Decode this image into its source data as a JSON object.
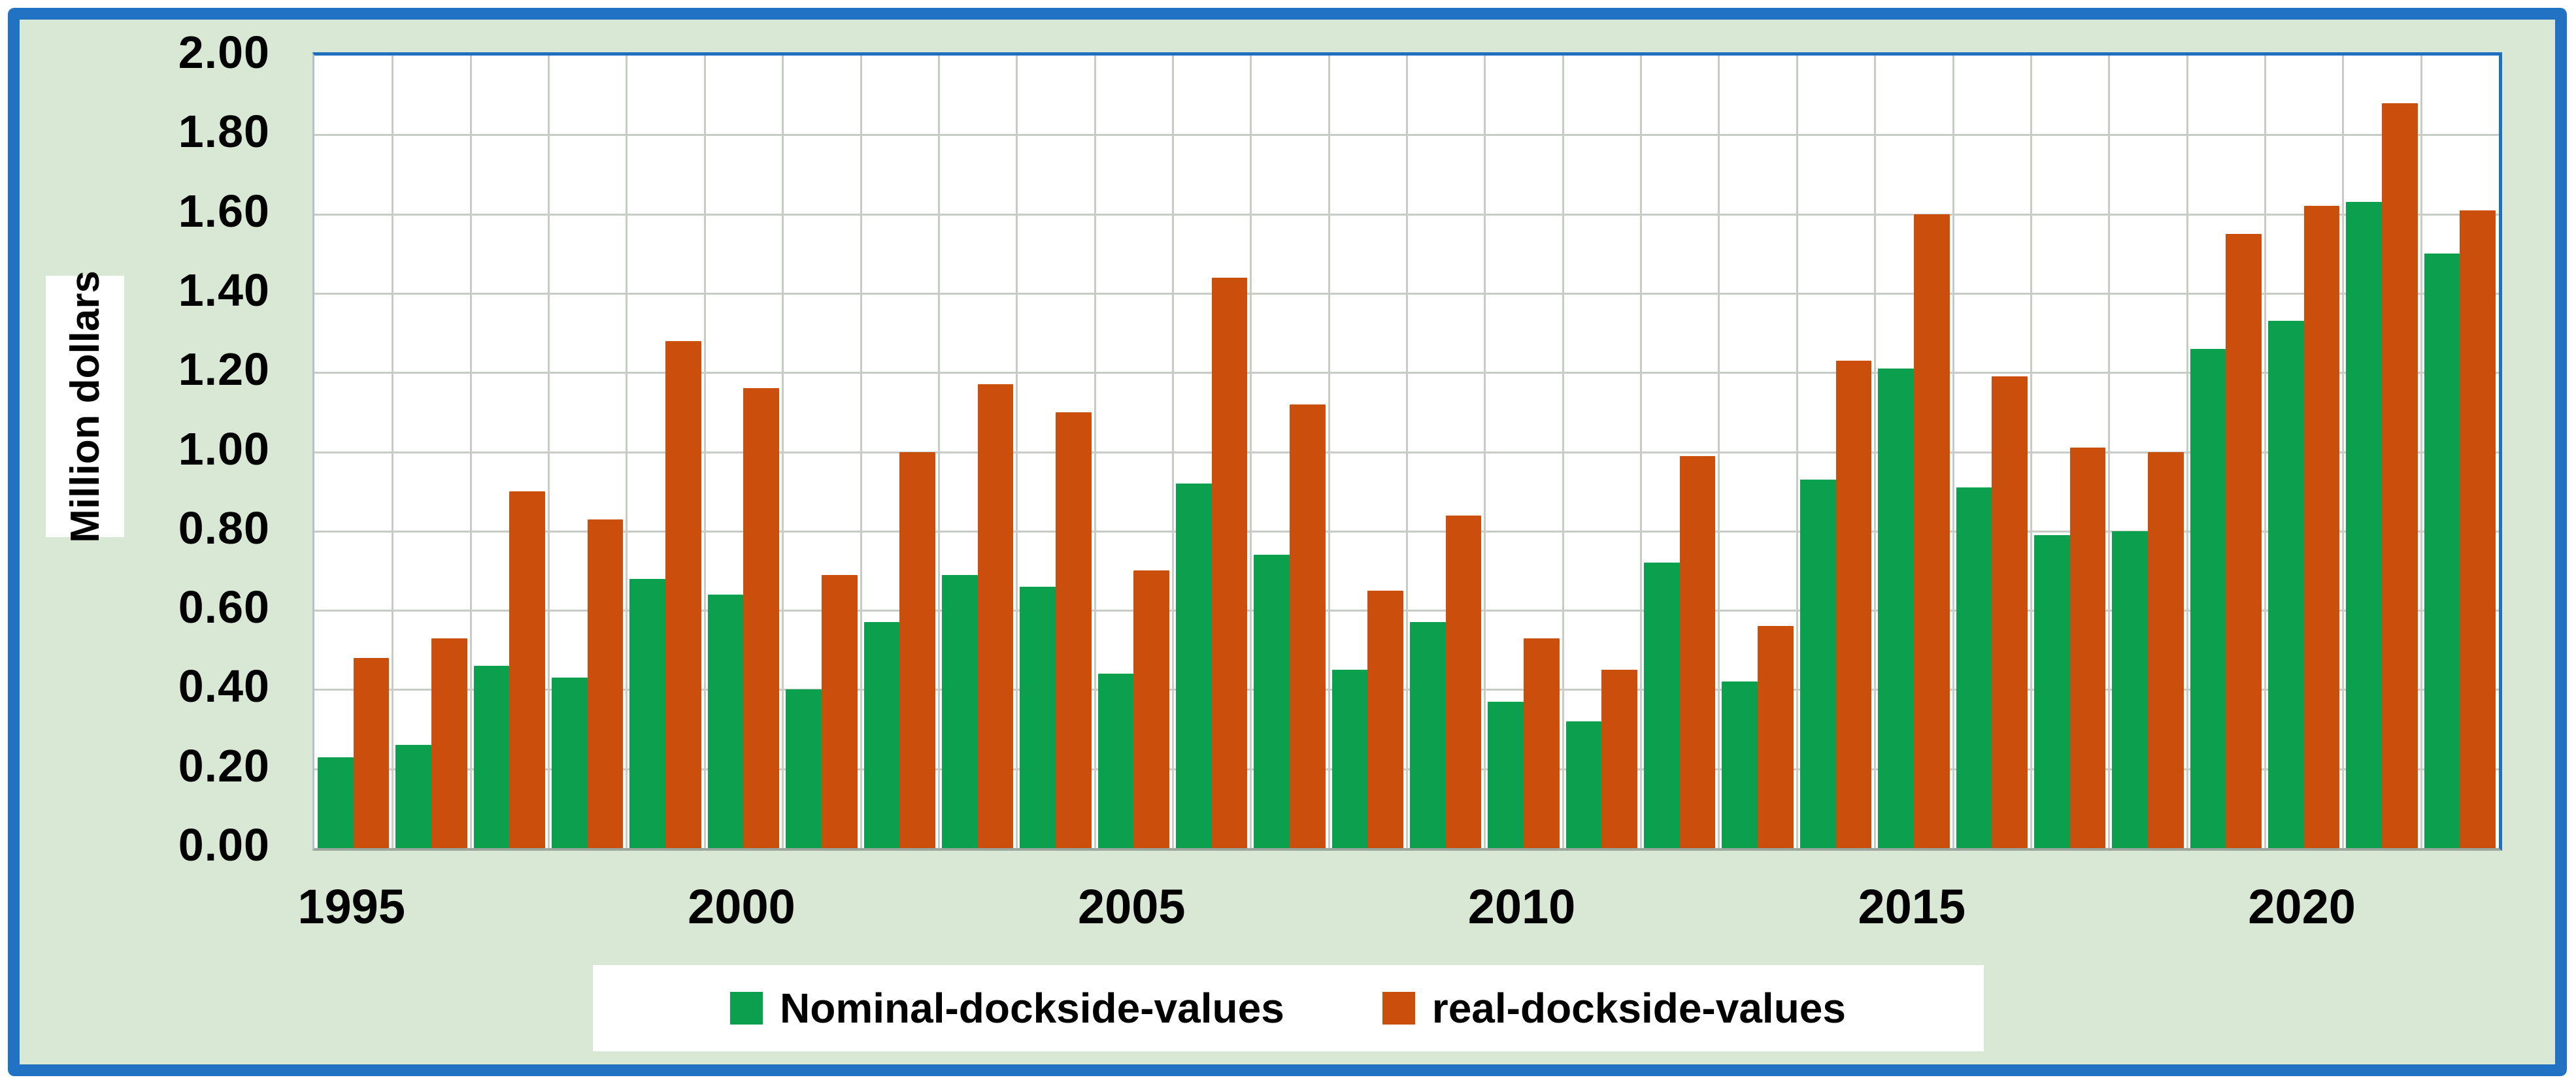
{
  "colors": {
    "frame_blue": "#2272c3",
    "plot_border_blue": "#1e6fc0",
    "background_green": "#d9e8d4",
    "gridline_gray": "#c7ccc7",
    "series_green": "#0aa04d",
    "series_orange": "#ca4f0d"
  },
  "chart_data": {
    "type": "bar",
    "title": "",
    "xlabel": "",
    "ylabel": "Million dollars",
    "ylim": [
      0,
      2.0
    ],
    "ytick_step": 0.2,
    "ytick_decimals": 2,
    "grid": "both",
    "legend_position": "bottom",
    "categories": [
      1995,
      1996,
      1997,
      1998,
      1999,
      2000,
      2001,
      2002,
      2003,
      2004,
      2005,
      2006,
      2007,
      2008,
      2009,
      2010,
      2011,
      2012,
      2013,
      2014,
      2015,
      2016,
      2017,
      2018,
      2019,
      2020,
      2021,
      2022
    ],
    "x_tick_labels": [
      "1995",
      "2000",
      "2005",
      "2010",
      "2015",
      "2020"
    ],
    "series": [
      {
        "name": "Nominal-dockside-values",
        "color": "#0aa04d",
        "values": [
          0.23,
          0.26,
          0.46,
          0.43,
          0.68,
          0.64,
          0.4,
          0.57,
          0.69,
          0.66,
          0.44,
          0.92,
          0.74,
          0.45,
          0.57,
          0.37,
          0.32,
          0.72,
          0.42,
          0.93,
          1.21,
          0.91,
          0.79,
          0.8,
          1.26,
          1.33,
          1.63,
          1.5
        ]
      },
      {
        "name": "real-dockside-values",
        "color": "#ca4f0d",
        "values": [
          0.48,
          0.53,
          0.9,
          0.83,
          1.28,
          1.16,
          0.69,
          1.0,
          1.17,
          1.1,
          0.7,
          1.44,
          1.12,
          0.65,
          0.84,
          0.53,
          0.45,
          0.99,
          0.56,
          1.23,
          1.6,
          1.19,
          1.01,
          1.0,
          1.55,
          1.62,
          1.88,
          1.61
        ]
      }
    ]
  }
}
